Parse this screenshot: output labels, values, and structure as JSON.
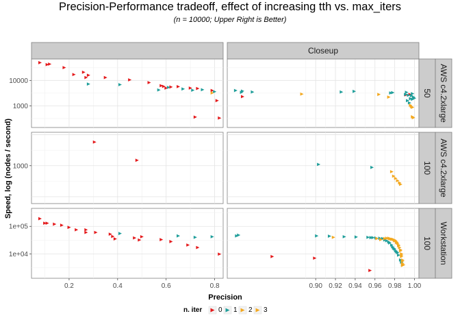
{
  "chart_data": {
    "type": "scatter",
    "title": "Precision-Performance tradeoff, effect of increasing tth vs. max_iters",
    "subtitle": "(n = 10000; Upper Right is Better)",
    "xlabel": "Precision",
    "ylabel": "Speed, log (nodes / second)",
    "y_scale": "log",
    "grid": true,
    "legend_position": "bottom",
    "legend_title": "n. iter",
    "series_colors": {
      "0": "#e41a1c",
      "1": "#1f9e9a",
      "2": "#f3a81f",
      "3": "#f3a81f"
    },
    "series_names": [
      "0",
      "1",
      "2",
      "3"
    ],
    "column_strips": [
      "",
      "Closeup"
    ],
    "row_strips": [
      [
        "AWS c4.2xlarge",
        "50"
      ],
      [
        "AWS c4.2xlarge",
        "100"
      ],
      [
        "Workstation",
        "100"
      ]
    ],
    "x_axes": [
      {
        "ticks": [
          0.2,
          0.4,
          0.6,
          0.8
        ],
        "labels": [
          "0.2",
          "0.4",
          "0.6",
          "0.8"
        ],
        "xlim": [
          0.045,
          0.835
        ]
      },
      {
        "ticks": [
          0.9,
          0.92,
          0.94,
          0.96,
          0.98,
          1.0
        ],
        "labels": [
          "0.90",
          "0.92",
          "0.94",
          "0.96",
          "0.98",
          "1.00"
        ],
        "xlim": [
          0.8105,
          1.0045
        ]
      }
    ],
    "y_axes": [
      {
        "ticks": [
          1000,
          10000
        ],
        "labels": [
          "1000",
          "10000"
        ],
        "ylim": [
          140,
          70000
        ]
      },
      {
        "ticks": [
          1000
        ],
        "labels": [
          "1000"
        ],
        "ylim": [
          60,
          12000
        ]
      },
      {
        "ticks": [
          10000,
          100000
        ],
        "labels": [
          "1e+04",
          "1e+05"
        ],
        "ylim": [
          1300,
          450000
        ]
      }
    ],
    "panels": [
      {
        "row": 0,
        "col": 0,
        "series": [
          {
            "name": "0",
            "points": [
              [
                0.08,
                50000
              ],
              [
                0.11,
                42000
              ],
              [
                0.12,
                44000
              ],
              [
                0.18,
                32000
              ],
              [
                0.22,
                17000
              ],
              [
                0.26,
                21000
              ],
              [
                0.28,
                16000
              ],
              [
                0.35,
                13000
              ],
              [
                0.45,
                10500
              ],
              [
                0.53,
                8200
              ],
              [
                0.58,
                6200
              ],
              [
                0.59,
                5800
              ],
              [
                0.62,
                5500
              ],
              [
                0.65,
                5700
              ],
              [
                0.7,
                5000
              ],
              [
                0.73,
                4800
              ],
              [
                0.79,
                4000
              ],
              [
                0.81,
                1600
              ],
              [
                0.82,
                330
              ],
              [
                0.72,
                360
              ],
              [
                0.6,
                5000
              ],
              [
                0.27,
                13000
              ]
            ]
          },
          {
            "name": "1",
            "points": [
              [
                0.28,
                7200
              ],
              [
                0.41,
                6800
              ],
              [
                0.57,
                4200
              ],
              [
                0.61,
                5300
              ],
              [
                0.67,
                4600
              ],
              [
                0.71,
                4100
              ],
              [
                0.75,
                4300
              ],
              [
                0.8,
                3600
              ]
            ]
          },
          {
            "name": "2",
            "points": [
              [
                0.79,
                3200
              ]
            ]
          },
          {
            "name": "3",
            "points": []
          }
        ]
      },
      {
        "row": 0,
        "col": 1,
        "series": [
          {
            "name": "0",
            "points": [
              [
                0.826,
                2300
              ],
              [
                0.9915,
                2700
              ],
              [
                0.9955,
                2800
              ]
            ]
          },
          {
            "name": "1",
            "points": [
              [
                0.819,
                4000
              ],
              [
                0.825,
                3400
              ],
              [
                0.826,
                3800
              ],
              [
                0.836,
                3500
              ],
              [
                0.926,
                3500
              ],
              [
                0.939,
                3700
              ],
              [
                0.976,
                3200
              ],
              [
                0.978,
                3300
              ],
              [
                0.991,
                2800
              ],
              [
                0.992,
                3400
              ],
              [
                0.993,
                1600
              ],
              [
                0.994,
                2600
              ],
              [
                0.995,
                1300
              ],
              [
                0.996,
                1900
              ],
              [
                0.997,
                2500
              ],
              [
                0.998,
                1800
              ],
              [
                0.998,
                3000
              ],
              [
                0.999,
                2200
              ],
              [
                1.0,
                2000
              ]
            ]
          },
          {
            "name": "2",
            "points": [
              [
                0.886,
                2900
              ],
              [
                0.964,
                2800
              ],
              [
                0.974,
                2200
              ],
              [
                0.997,
                930
              ],
              [
                0.998,
                870
              ],
              [
                0.998,
                370
              ]
            ]
          },
          {
            "name": "3",
            "points": [
              [
                0.996,
                1050
              ],
              [
                0.999,
                340
              ]
            ]
          }
        ]
      },
      {
        "row": 1,
        "col": 0,
        "series": [
          {
            "name": "0",
            "points": [
              [
                0.305,
                5800
              ],
              [
                0.48,
                1500
              ]
            ]
          },
          {
            "name": "1",
            "points": []
          },
          {
            "name": "2",
            "points": []
          },
          {
            "name": "3",
            "points": []
          }
        ]
      },
      {
        "row": 1,
        "col": 1,
        "series": [
          {
            "name": "0",
            "points": []
          },
          {
            "name": "1",
            "points": [
              [
                0.903,
                1100
              ],
              [
                0.957,
                880
              ]
            ]
          },
          {
            "name": "2",
            "points": [
              [
                0.977,
                640
              ],
              [
                0.979,
                460
              ],
              [
                0.981,
                390
              ],
              [
                0.983,
                330
              ],
              [
                0.985,
                280
              ]
            ]
          },
          {
            "name": "3",
            "points": [
              [
                0.986,
                250
              ]
            ]
          }
        ]
      },
      {
        "row": 2,
        "col": 0,
        "series": [
          {
            "name": "0",
            "points": [
              [
                0.08,
                190000
              ],
              [
                0.1,
                130000
              ],
              [
                0.11,
                130000
              ],
              [
                0.14,
                120000
              ],
              [
                0.17,
                110000
              ],
              [
                0.2,
                92000
              ],
              [
                0.23,
                75000
              ],
              [
                0.27,
                75000
              ],
              [
                0.27,
                60000
              ],
              [
                0.31,
                60000
              ],
              [
                0.37,
                52000
              ],
              [
                0.38,
                43000
              ],
              [
                0.39,
                35000
              ],
              [
                0.47,
                38000
              ],
              [
                0.49,
                32000
              ],
              [
                0.5,
                42000
              ],
              [
                0.58,
                33000
              ],
              [
                0.62,
                28000
              ],
              [
                0.69,
                21000
              ],
              [
                0.73,
                17000
              ],
              [
                0.82,
                9800
              ]
            ]
          },
          {
            "name": "1",
            "points": [
              [
                0.41,
                55000
              ],
              [
                0.65,
                45000
              ],
              [
                0.72,
                40000
              ],
              [
                0.79,
                42000
              ]
            ]
          },
          {
            "name": "2",
            "points": []
          },
          {
            "name": "3",
            "points": []
          }
        ]
      },
      {
        "row": 2,
        "col": 1,
        "series": [
          {
            "name": "0",
            "points": [
              [
                0.856,
                8000
              ],
              [
                0.899,
                7000
              ],
              [
                0.955,
                2500
              ]
            ]
          },
          {
            "name": "1",
            "points": [
              [
                0.82,
                45000
              ],
              [
                0.822,
                48000
              ],
              [
                0.901,
                45000
              ],
              [
                0.914,
                44000
              ],
              [
                0.929,
                42000
              ],
              [
                0.941,
                41000
              ],
              [
                0.953,
                40000
              ],
              [
                0.956,
                39000
              ],
              [
                0.958,
                39000
              ],
              [
                0.961,
                38000
              ],
              [
                0.965,
                37000
              ],
              [
                0.968,
                36000
              ],
              [
                0.97,
                32000
              ],
              [
                0.972,
                30000
              ],
              [
                0.974,
                27000
              ],
              [
                0.975,
                25000
              ],
              [
                0.977,
                21000
              ],
              [
                0.978,
                18000
              ],
              [
                0.979,
                16000
              ],
              [
                0.98,
                15000
              ],
              [
                0.981,
                13000
              ],
              [
                0.982,
                12000
              ],
              [
                0.983,
                11000
              ],
              [
                0.984,
                9000
              ],
              [
                0.986,
                6000
              ],
              [
                0.987,
                5000
              ],
              [
                0.988,
                4000
              ]
            ]
          },
          {
            "name": "2",
            "points": [
              [
                0.918,
                40000
              ],
              [
                0.962,
                36000
              ],
              [
                0.966,
                33000
              ],
              [
                0.97,
                36000
              ],
              [
                0.972,
                37000
              ],
              [
                0.974,
                37000
              ],
              [
                0.975,
                36000
              ],
              [
                0.976,
                35000
              ],
              [
                0.977,
                34000
              ],
              [
                0.978,
                34000
              ],
              [
                0.979,
                33000
              ],
              [
                0.98,
                32000
              ],
              [
                0.981,
                30000
              ],
              [
                0.982,
                27000
              ],
              [
                0.983,
                24000
              ],
              [
                0.984,
                21000
              ],
              [
                0.985,
                17000
              ],
              [
                0.986,
                13000
              ],
              [
                0.987,
                10000
              ],
              [
                0.987,
                8000
              ],
              [
                0.988,
                6000
              ],
              [
                0.988,
                4500
              ],
              [
                0.989,
                4000
              ]
            ]
          },
          {
            "name": "3",
            "points": [
              [
                0.98,
                30000
              ],
              [
                0.982,
                26000
              ],
              [
                0.984,
                20000
              ],
              [
                0.986,
                14000
              ],
              [
                0.987,
                9000
              ],
              [
                0.988,
                5500
              ],
              [
                0.988,
                3800
              ]
            ]
          }
        ]
      }
    ]
  }
}
